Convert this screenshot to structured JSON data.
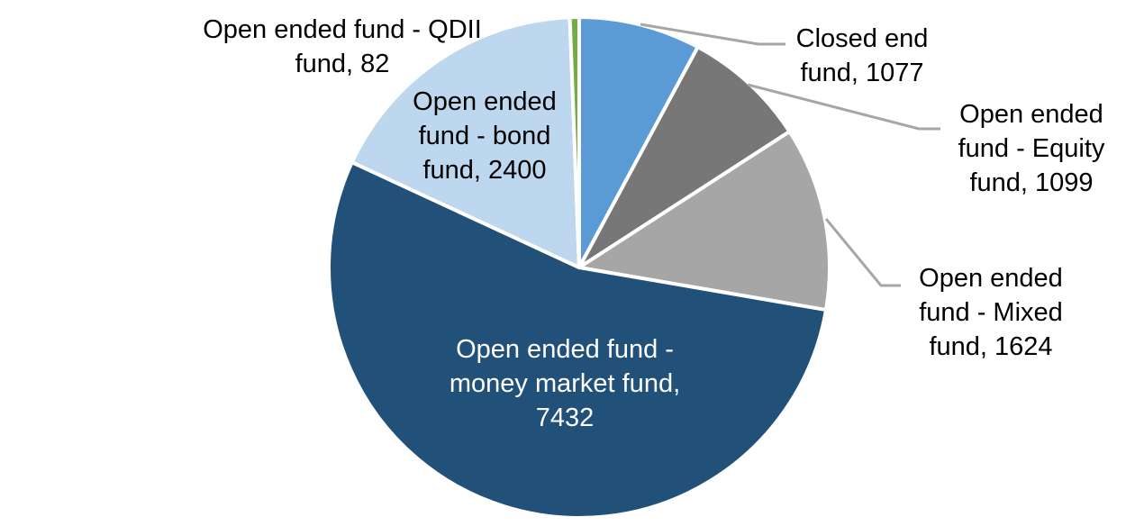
{
  "chart_data": {
    "type": "pie",
    "title": "",
    "total": 13714,
    "start_angle_deg": 0,
    "direction": "clockwise",
    "background_color": "#FFFFFF",
    "slice_border_color": "#FFFFFF",
    "leader_line_color": "#A6A6A6",
    "label_color": "#000000",
    "segments": [
      {
        "id": "closed-end-fund",
        "label": "Closed end fund",
        "value": 1077,
        "color": "#5B9BD5",
        "label_text": "Closed end\nfund, 1077",
        "label_color": "#000000",
        "has_leader_line": true
      },
      {
        "id": "equity-fund",
        "label": "Open ended fund - Equity fund",
        "value": 1099,
        "color": "#777777",
        "label_text": "Open ended\nfund - Equity\nfund, 1099",
        "label_color": "#000000",
        "has_leader_line": true
      },
      {
        "id": "mixed-fund",
        "label": "Open ended fund - Mixed fund",
        "value": 1624,
        "color": "#A6A6A6",
        "label_text": "Open ended\nfund - Mixed\nfund, 1624",
        "label_color": "#000000",
        "has_leader_line": true
      },
      {
        "id": "money-market-fund",
        "label": "Open ended fund - money market fund",
        "value": 7432,
        "color": "#215079",
        "label_text": "Open ended fund -\nmoney market fund,\n7432",
        "label_color": "#FFFFFF",
        "has_leader_line": false
      },
      {
        "id": "bond-fund",
        "label": "Open ended fund - bond fund",
        "value": 2400,
        "color": "#BDD7EE",
        "label_text": "Open ended\nfund - bond\nfund, 2400",
        "label_color": "#000000",
        "has_leader_line": false
      },
      {
        "id": "qdii-fund",
        "label": "Open ended fund - QDII fund",
        "value": 82,
        "color": "#70AD47",
        "label_text": "Open ended fund - QDII\nfund, 82",
        "label_color": "#000000",
        "has_leader_line": false
      }
    ]
  }
}
